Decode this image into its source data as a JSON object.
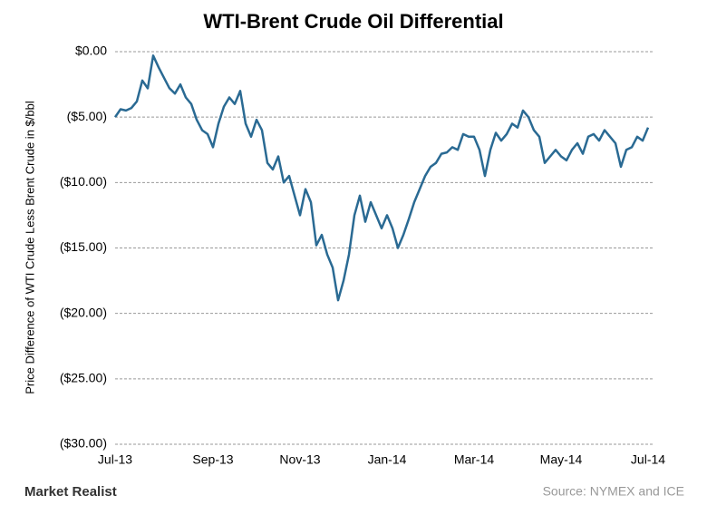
{
  "chart_data": {
    "type": "line",
    "title": "WTI-Brent Crude Oil Differential",
    "y_label": "Price Difference of WTI Crude Less Brent Crude in $/bbl",
    "source": "Source: NYMEX and ICE",
    "brand": "Market Realist",
    "color": "#2a6a93",
    "grid": true,
    "categories": [
      "Jul-13",
      null,
      null,
      null,
      null,
      null,
      null,
      null,
      null,
      null,
      null,
      null,
      null,
      null,
      null,
      null,
      null,
      null,
      "Sep-13",
      null,
      null,
      null,
      null,
      null,
      null,
      null,
      null,
      null,
      null,
      null,
      null,
      null,
      null,
      null,
      "Nov-13",
      null,
      null,
      null,
      null,
      null,
      null,
      null,
      null,
      null,
      null,
      null,
      null,
      null,
      null,
      null,
      "Jan-14",
      null,
      null,
      null,
      null,
      null,
      null,
      null,
      null,
      null,
      null,
      null,
      null,
      null,
      null,
      null,
      "Mar-14",
      null,
      null,
      null,
      null,
      null,
      null,
      null,
      null,
      null,
      null,
      null,
      null,
      null,
      null,
      null,
      "May-14",
      null,
      null,
      null,
      null,
      null,
      null,
      null,
      null,
      null,
      null,
      null,
      null,
      null,
      null,
      null,
      "Jul-14"
    ],
    "values": [
      -5.0,
      -4.4,
      -4.5,
      -4.3,
      -3.8,
      -2.2,
      -2.8,
      -0.3,
      -1.2,
      -2.0,
      -2.8,
      -3.2,
      -2.5,
      -3.5,
      -4.0,
      -5.2,
      -6.0,
      -6.3,
      -7.3,
      -5.5,
      -4.2,
      -3.5,
      -4.0,
      -3.0,
      -5.5,
      -6.5,
      -5.2,
      -6.0,
      -8.5,
      -9.0,
      -8.0,
      -10.0,
      -9.5,
      -11.0,
      -12.5,
      -10.5,
      -11.5,
      -14.8,
      -14.0,
      -15.5,
      -16.5,
      -19.0,
      -17.5,
      -15.5,
      -12.5,
      -11.0,
      -13.0,
      -11.5,
      -12.5,
      -13.5,
      -12.5,
      -13.5,
      -15.0,
      -14.0,
      -12.8,
      -11.5,
      -10.5,
      -9.5,
      -8.8,
      -8.5,
      -7.8,
      -7.7,
      -7.3,
      -7.5,
      -6.3,
      -6.5,
      -6.5,
      -7.5,
      -9.5,
      -7.5,
      -6.2,
      -6.8,
      -6.3,
      -5.5,
      -5.8,
      -4.5,
      -5.0,
      -6.0,
      -6.5,
      -8.5,
      -8.0,
      -7.5,
      -8.0,
      -8.3,
      -7.5,
      -7.0,
      -7.8,
      -6.5,
      -6.3,
      -6.8,
      -6.0,
      -6.5,
      -7.0,
      -8.8,
      -7.5,
      -7.3,
      -6.5,
      -6.8,
      -5.8
    ],
    "ylim": [
      -30,
      0
    ],
    "yticks": [
      {
        "value": 0,
        "label": "$0.00"
      },
      {
        "value": -5,
        "label": "($5.00)"
      },
      {
        "value": -10,
        "label": "($10.00)"
      },
      {
        "value": -15,
        "label": "($15.00)"
      },
      {
        "value": -20,
        "label": "($20.00)"
      },
      {
        "value": -25,
        "label": "($25.00)"
      },
      {
        "value": -30,
        "label": "($30.00)"
      }
    ]
  }
}
